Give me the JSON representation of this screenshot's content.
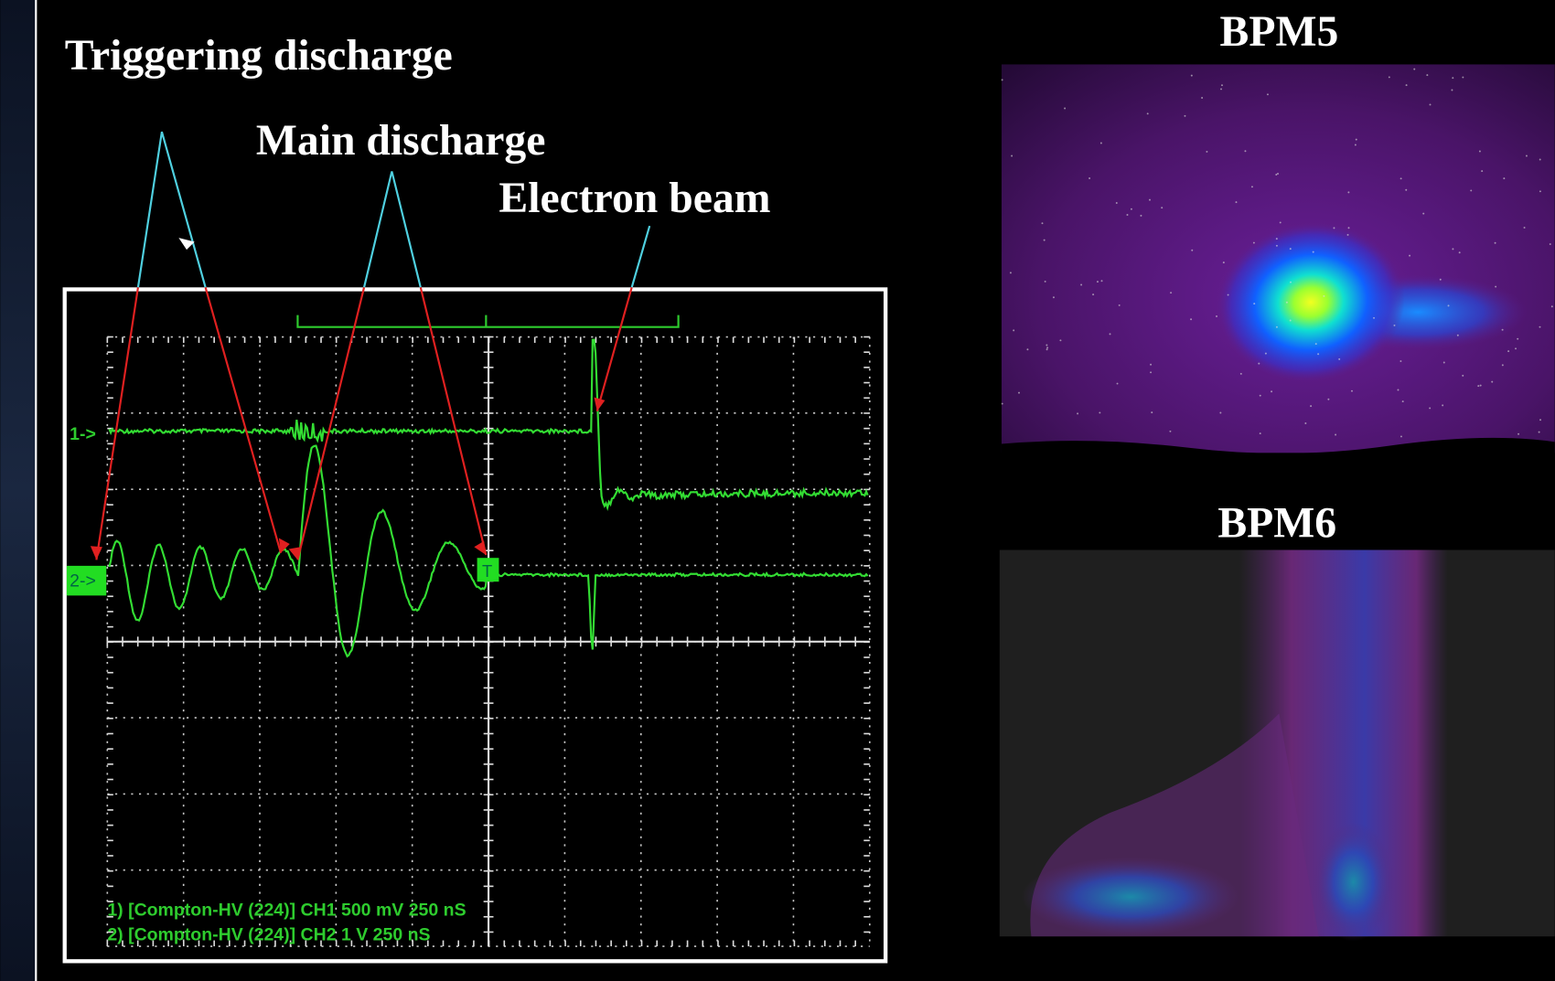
{
  "annotations": {
    "triggering": "Triggering discharge",
    "main": "Main discharge",
    "electron": "Electron beam"
  },
  "oscilloscope": {
    "channel_1_marker": "1->",
    "channel_2_marker": "2->",
    "trigger_marker": "T",
    "readout": [
      "1) [Compton-HV (224)] CH1  500 mV   250 nS",
      "2) [Compton-HV (224)] CH2  1 V  250 nS"
    ]
  },
  "panels": [
    {
      "title": "BPM5"
    },
    {
      "title": "BPM6"
    }
  ]
}
